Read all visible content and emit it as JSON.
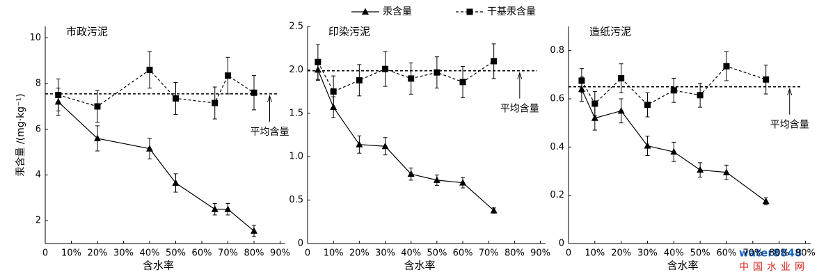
{
  "chart_data": [
    {
      "type": "line",
      "title": "市政污泥",
      "xlabel": "含水率",
      "ylabel": "汞含量 /(mg·kg⁻¹)",
      "x": [
        5,
        20,
        40,
        50,
        65,
        70,
        80
      ],
      "series": [
        {
          "name": "汞含量",
          "color": "#000000",
          "marker": "triangle",
          "line_style": "solid",
          "values": [
            7.2,
            5.6,
            5.15,
            3.65,
            2.5,
            2.5,
            1.55
          ],
          "errors": [
            0.6,
            0.55,
            0.45,
            0.4,
            0.25,
            0.25,
            0.25
          ]
        },
        {
          "name": "干基汞含量",
          "color": "#000000",
          "marker": "square",
          "line_style": "dashed",
          "values": [
            7.5,
            7.0,
            8.6,
            7.35,
            7.15,
            8.35,
            7.6
          ],
          "errors": [
            0.7,
            0.7,
            0.8,
            0.7,
            0.7,
            0.8,
            0.75
          ]
        }
      ],
      "mean_line": 7.55,
      "annotation": "平均含量",
      "xlim": [
        0,
        92
      ],
      "xticks": [
        0,
        {
          "value": 10,
          "label": "10%"
        },
        {
          "value": 20,
          "label": "20%"
        },
        {
          "value": 30,
          "label": "30%"
        },
        {
          "value": 40,
          "label": "40%"
        },
        {
          "value": 50,
          "label": "50%"
        },
        {
          "value": 60,
          "label": "60%"
        },
        {
          "value": 70,
          "label": "70%"
        },
        {
          "value": 80,
          "label": "80%"
        },
        {
          "value": 90,
          "label": "90%"
        }
      ],
      "ylim": [
        1,
        10.5
      ],
      "yticks": [
        2,
        4,
        6,
        8,
        10
      ]
    },
    {
      "type": "line",
      "title": "印染污泥",
      "xlabel": "含水率",
      "x": [
        4,
        10,
        20,
        30,
        40,
        50,
        60,
        72
      ],
      "series": [
        {
          "color": "#000000",
          "marker": "triangle",
          "line_style": "solid",
          "values": [
            2.0,
            1.57,
            1.14,
            1.12,
            0.8,
            0.73,
            0.7,
            0.38
          ],
          "errors": [
            0.12,
            0.12,
            0.1,
            0.1,
            0.07,
            0.06,
            0.06,
            0.03
          ]
        },
        {
          "color": "#000000",
          "marker": "square",
          "line_style": "dashed",
          "values": [
            2.09,
            1.75,
            1.88,
            2.01,
            1.9,
            1.97,
            1.86,
            2.1
          ],
          "errors": [
            0.2,
            0.18,
            0.18,
            0.2,
            0.18,
            0.18,
            0.18,
            0.2
          ]
        }
      ],
      "mean_line": 1.99,
      "annotation": "平均含量",
      "xlim": [
        0,
        92
      ],
      "xticks": [
        0,
        {
          "value": 10,
          "label": "10%"
        },
        {
          "value": 20,
          "label": "20%"
        },
        {
          "value": 30,
          "label": "30%"
        },
        {
          "value": 40,
          "label": "40%"
        },
        {
          "value": 50,
          "label": "50%"
        },
        {
          "value": 60,
          "label": "60%"
        },
        {
          "value": 70,
          "label": "70%"
        },
        {
          "value": 80,
          "label": "80%"
        },
        {
          "value": 90,
          "label": "90%"
        }
      ],
      "ylim": [
        0,
        2.5
      ],
      "yticks": [
        0,
        0.5,
        {
          "value": 1,
          "label": "1.0"
        },
        1.5,
        {
          "value": 2,
          "label": "2.0"
        },
        2.5
      ]
    },
    {
      "type": "line",
      "title": "造纸污泥",
      "xlabel": "含水率",
      "x": [
        5,
        10,
        20,
        30,
        40,
        50,
        60,
        75
      ],
      "series": [
        {
          "color": "#000000",
          "marker": "triangle",
          "line_style": "solid",
          "values": [
            0.64,
            0.52,
            0.55,
            0.405,
            0.38,
            0.305,
            0.295,
            0.175
          ],
          "errors": [
            0.05,
            0.05,
            0.05,
            0.04,
            0.04,
            0.03,
            0.03,
            0.015
          ]
        },
        {
          "color": "#000000",
          "marker": "square",
          "line_style": "dashed",
          "values": [
            0.675,
            0.58,
            0.685,
            0.575,
            0.635,
            0.615,
            0.735,
            0.68
          ],
          "errors": [
            0.05,
            0.05,
            0.06,
            0.05,
            0.05,
            0.05,
            0.06,
            0.06
          ]
        }
      ],
      "mean_line": 0.65,
      "annotation": "平均含量",
      "xlim": [
        0,
        92
      ],
      "xticks": [
        0,
        {
          "value": 10,
          "label": "10%"
        },
        {
          "value": 20,
          "label": "20%"
        },
        {
          "value": 30,
          "label": "30%"
        },
        {
          "value": 40,
          "label": "40%"
        },
        {
          "value": 50,
          "label": "50%"
        },
        {
          "value": 60,
          "label": "60%"
        },
        {
          "value": 70,
          "label": "70%"
        },
        {
          "value": 80,
          "label": "80%"
        },
        {
          "value": 90,
          "label": "90%"
        }
      ],
      "ylim": [
        0,
        0.9
      ],
      "yticks": [
        0,
        0.2,
        0.4,
        0.6,
        0.8
      ]
    }
  ],
  "watermark": {
    "logo": "water8848",
    "text": "中国水业网"
  }
}
